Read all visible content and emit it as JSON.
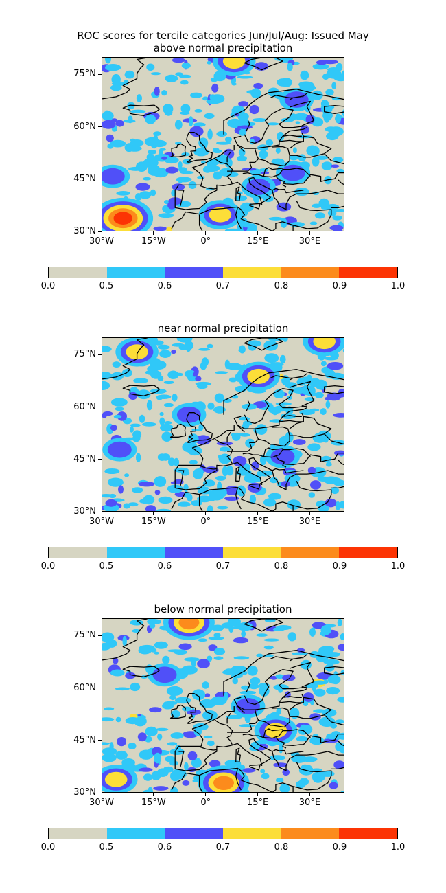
{
  "figure": {
    "title_line1": "ROC scores for tercile categories Jun/Jul/Aug: Issued May"
  },
  "axes": {
    "lat_ticks": [
      "75°N",
      "60°N",
      "45°N",
      "30°N"
    ],
    "lon_ticks": [
      "30°W",
      "15°W",
      "0°",
      "15°E",
      "30°E"
    ]
  },
  "colorbar": {
    "labels": [
      "0.0",
      "0.5",
      "0.6",
      "0.7",
      "0.8",
      "0.9",
      "1.0"
    ],
    "colors": [
      "#d6d5c2",
      "#30c8f8",
      "#5050f8",
      "#fcde38",
      "#fc8b1c",
      "#fc3404"
    ]
  },
  "panels": [
    {
      "title": "above normal precipitation"
    },
    {
      "title": "near normal precipitation"
    },
    {
      "title": "below normal precipitation"
    }
  ],
  "chart_data": [
    {
      "type": "heatmap",
      "title": "above normal precipitation",
      "xlim": [
        -30,
        40
      ],
      "ylim": [
        30,
        80
      ],
      "xticks": [
        "30°W",
        "15°W",
        "0°",
        "15°E",
        "30°E"
      ],
      "yticks": [
        "30°N",
        "45°N",
        "60°N",
        "75°N"
      ],
      "colorbar_bounds": [
        0.0,
        0.5,
        0.6,
        0.7,
        0.8,
        0.9,
        1.0
      ],
      "hotspots": [
        {
          "lon": -24,
          "lat": 34,
          "value": 0.92
        },
        {
          "lon": 8,
          "lat": 79,
          "value": 0.78
        },
        {
          "lon": 4,
          "lat": 35,
          "value": 0.75
        },
        {
          "lon": 26,
          "lat": 68,
          "value": 0.68
        },
        {
          "lon": 25,
          "lat": 47,
          "value": 0.65
        },
        {
          "lon": -27,
          "lat": 46,
          "value": 0.62
        },
        {
          "lon": 15,
          "lat": 43,
          "value": 0.64
        }
      ]
    },
    {
      "type": "heatmap",
      "title": "near normal precipitation",
      "xlim": [
        -30,
        40
      ],
      "ylim": [
        30,
        80
      ],
      "xticks": [
        "30°W",
        "15°W",
        "0°",
        "15°E",
        "30°E"
      ],
      "yticks": [
        "30°N",
        "45°N",
        "60°N",
        "75°N"
      ],
      "colorbar_bounds": [
        0.0,
        0.5,
        0.6,
        0.7,
        0.8,
        0.9,
        1.0
      ],
      "hotspots": [
        {
          "lon": 34,
          "lat": 79,
          "value": 0.72
        },
        {
          "lon": -20,
          "lat": 76,
          "value": 0.71
        },
        {
          "lon": 15,
          "lat": 69,
          "value": 0.72
        },
        {
          "lon": -25,
          "lat": 48,
          "value": 0.64
        },
        {
          "lon": 22,
          "lat": 46,
          "value": 0.63
        },
        {
          "lon": -5,
          "lat": 58,
          "value": 0.6
        }
      ]
    },
    {
      "type": "heatmap",
      "title": "below normal precipitation",
      "xlim": [
        -30,
        40
      ],
      "ylim": [
        30,
        80
      ],
      "xticks": [
        "30°W",
        "15°W",
        "0°",
        "15°E",
        "30°E"
      ],
      "yticks": [
        "30°N",
        "45°N",
        "60°N",
        "75°N"
      ],
      "colorbar_bounds": [
        0.0,
        0.5,
        0.6,
        0.7,
        0.8,
        0.9,
        1.0
      ],
      "hotspots": [
        {
          "lon": -5,
          "lat": 79,
          "value": 0.82
        },
        {
          "lon": -26,
          "lat": 34,
          "value": 0.78
        },
        {
          "lon": 5,
          "lat": 33,
          "value": 0.82
        },
        {
          "lon": 12,
          "lat": 55,
          "value": 0.68
        },
        {
          "lon": 20,
          "lat": 48,
          "value": 0.7
        },
        {
          "lon": -12,
          "lat": 64,
          "value": 0.62
        }
      ]
    }
  ]
}
